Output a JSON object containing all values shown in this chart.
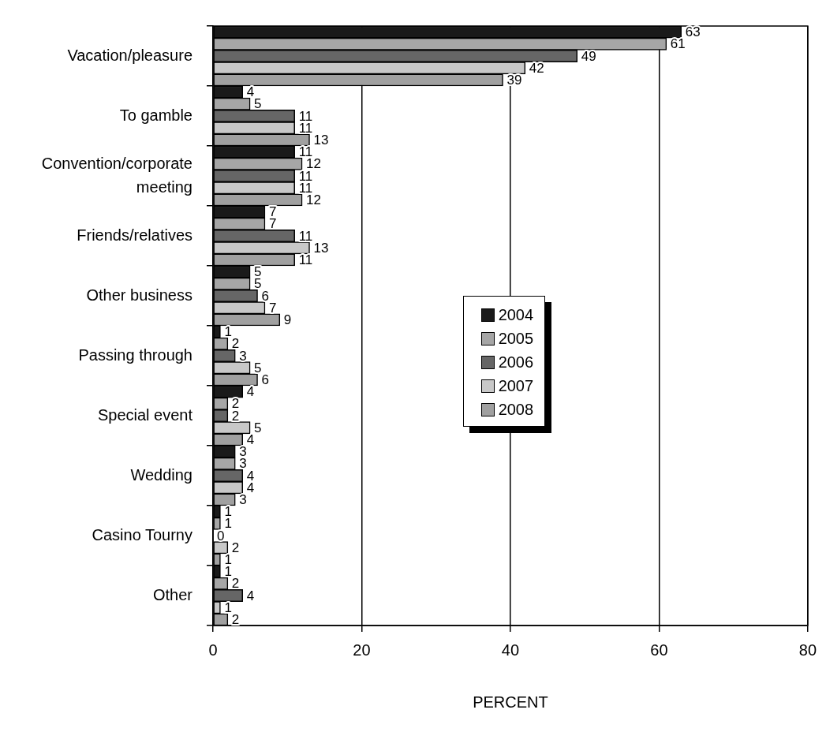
{
  "chart_data": {
    "type": "bar",
    "orientation": "horizontal",
    "xlabel": "PERCENT",
    "categories": [
      "Vacation/pleasure",
      "To gamble",
      "Convention/corporate meeting",
      "Friends/relatives",
      "Other business",
      "Passing through",
      "Special event",
      "Wedding",
      "Casino Tourny",
      "Other"
    ],
    "series": [
      {
        "name": "2004",
        "color": "#1a1a1a",
        "values": [
          63,
          4,
          11,
          7,
          5,
          1,
          4,
          3,
          1,
          1
        ]
      },
      {
        "name": "2005",
        "color": "#a6a6a6",
        "values": [
          61,
          5,
          12,
          7,
          5,
          2,
          2,
          3,
          1,
          2
        ]
      },
      {
        "name": "2006",
        "color": "#666666",
        "values": [
          49,
          11,
          11,
          11,
          6,
          3,
          2,
          4,
          0,
          4
        ]
      },
      {
        "name": "2007",
        "color": "#c8c8c8",
        "values": [
          42,
          11,
          11,
          13,
          7,
          5,
          5,
          4,
          2,
          1
        ]
      },
      {
        "name": "2008",
        "color": "#a0a0a0",
        "values": [
          39,
          13,
          12,
          11,
          9,
          6,
          4,
          3,
          1,
          2
        ]
      }
    ],
    "data_labels": true,
    "xlim": [
      0,
      80
    ],
    "xticks": [
      0,
      20,
      40,
      60,
      80
    ],
    "grid": "x",
    "legend": "right"
  }
}
